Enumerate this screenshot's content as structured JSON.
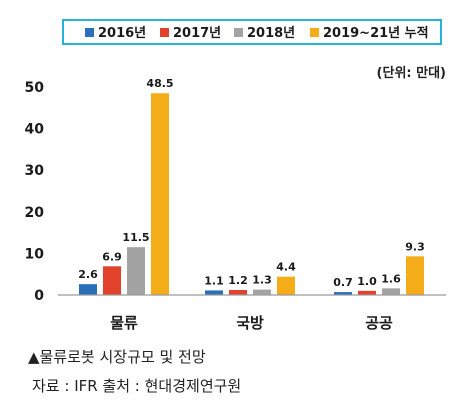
{
  "chart_data": {
    "type": "bar",
    "categories": [
      "물류",
      "국방",
      "공공"
    ],
    "series": [
      {
        "name": "2016년",
        "color": "#2a6fba",
        "values": [
          2.6,
          1.1,
          0.7
        ]
      },
      {
        "name": "2017년",
        "color": "#e2412c",
        "values": [
          6.9,
          1.2,
          1.0
        ]
      },
      {
        "name": "2018년",
        "color": "#a3a3a3",
        "values": [
          11.5,
          1.3,
          1.6
        ]
      },
      {
        "name": "2019~21년 누적",
        "color": "#f4ad18",
        "values": [
          48.5,
          4.4,
          9.3
        ]
      }
    ],
    "data_labels": [
      [
        "2.6",
        "1.1",
        "0.7"
      ],
      [
        "6.9",
        "1.2",
        "1.0"
      ],
      [
        "11.5",
        "1.3",
        "1.6"
      ],
      [
        "48.5",
        "4.4",
        "9.3"
      ]
    ],
    "unit_label": "(단위: 만대)",
    "yticks": [
      "0",
      "10",
      "20",
      "30",
      "40",
      "50"
    ],
    "ylim": [
      0,
      50
    ],
    "grid": false,
    "legend_position": "top"
  },
  "captions": {
    "title": "▲물류로봇 시장규모 및 전망",
    "source": "자료 : IFR 출처 : 현대경제연구원"
  }
}
